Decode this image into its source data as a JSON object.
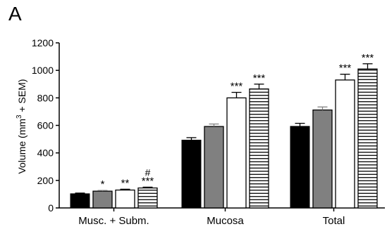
{
  "panel_label": "A",
  "chart_data": {
    "type": "bar",
    "ylabel": "Volume (mm³ + SEM)",
    "xlabel": "",
    "ylim": [
      0,
      1200
    ],
    "yticks": [
      0,
      200,
      400,
      600,
      800,
      1000,
      1200
    ],
    "categories": [
      "Musc. + Subm.",
      "Mucosa",
      "Total"
    ],
    "grid": false,
    "legend": "none",
    "series": [
      {
        "fill": "solid",
        "color": "#000000",
        "values": [
          103,
          493,
          593
        ],
        "errors": [
          5,
          18,
          22
        ],
        "annotations": [
          "",
          "",
          ""
        ]
      },
      {
        "fill": "solid",
        "color": "#808080",
        "values": [
          122,
          592,
          712
        ],
        "errors": [
          5,
          18,
          22
        ],
        "annotations": [
          "*",
          "",
          ""
        ]
      },
      {
        "fill": "open",
        "color": "#ffffff",
        "values": [
          130,
          800,
          930
        ],
        "errors": [
          6,
          40,
          42
        ],
        "annotations": [
          "**",
          "***",
          "***"
        ]
      },
      {
        "fill": "hlines",
        "color": "#ffffff",
        "values": [
          145,
          865,
          1010
        ],
        "errors": [
          6,
          35,
          38
        ],
        "annotations": [
          "#\n***",
          "***",
          "***"
        ]
      }
    ]
  }
}
